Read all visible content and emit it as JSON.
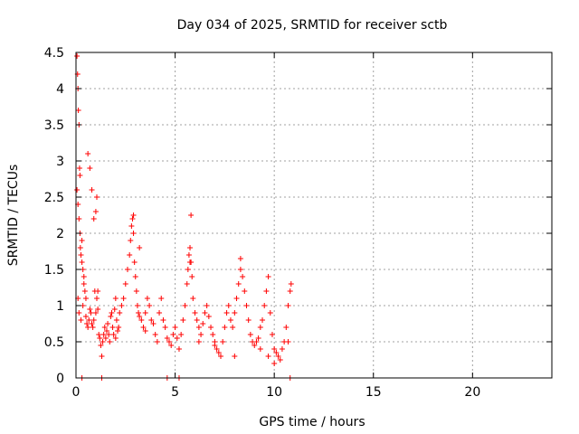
{
  "chart_data": {
    "type": "scatter",
    "title": "Day 034 of 2025, SRMTID for receiver sctb",
    "xlabel": "GPS time / hours",
    "ylabel": "SRMTID / TECUs",
    "xlim": [
      0,
      24
    ],
    "ylim": [
      0,
      4.5
    ],
    "x_ticks": [
      0,
      5,
      10,
      15,
      20
    ],
    "x_tick_labels": [
      "0",
      "5",
      "10",
      "15",
      "20"
    ],
    "y_ticks": [
      0,
      0.5,
      1,
      1.5,
      2,
      2.5,
      3,
      3.5,
      4,
      4.5
    ],
    "y_tick_labels": [
      "0",
      "0.5",
      "1",
      "1.5",
      "2",
      "2.5",
      "3",
      "3.5",
      "4",
      "4.5"
    ],
    "grid": true,
    "marker": "+",
    "marker_color": "#ff0000",
    "series": [
      {
        "name": "SRMTID",
        "x": [
          0.05,
          0.08,
          0.1,
          0.12,
          0.15,
          0.18,
          0.2,
          0.05,
          0.1,
          0.15,
          0.22,
          0.25,
          0.3,
          0.35,
          0.4,
          0.45,
          0.5,
          0.2,
          0.3,
          0.4,
          0.1,
          0.15,
          0.25,
          0.35,
          0.5,
          0.55,
          0.6,
          0.65,
          0.7,
          0.75,
          0.8,
          0.85,
          0.9,
          0.95,
          1.0,
          1.05,
          1.1,
          1.0,
          1.05,
          1.1,
          0.6,
          0.7,
          0.8,
          0.9,
          1.15,
          1.2,
          1.25,
          1.3,
          1.35,
          1.4,
          1.45,
          1.5,
          1.55,
          1.6,
          1.65,
          1.7,
          1.75,
          1.8,
          1.85,
          1.9,
          1.95,
          2.0,
          2.05,
          2.1,
          2.15,
          2.2,
          2.3,
          2.4,
          2.5,
          2.6,
          2.7,
          2.75,
          2.8,
          2.85,
          2.9,
          2.95,
          3.0,
          3.05,
          3.1,
          3.15,
          3.2,
          3.3,
          3.4,
          3.5,
          3.6,
          3.7,
          3.8,
          3.9,
          4.0,
          4.1,
          4.2,
          4.3,
          4.4,
          4.5,
          4.6,
          4.7,
          4.8,
          4.9,
          5.0,
          5.1,
          5.2,
          5.3,
          5.4,
          5.5,
          5.6,
          5.65,
          5.7,
          5.75,
          5.8,
          5.85,
          5.9,
          6.0,
          6.1,
          6.2,
          6.3,
          6.4,
          6.5,
          6.6,
          6.7,
          6.8,
          6.9,
          7.0,
          7.1,
          7.2,
          7.3,
          7.4,
          7.5,
          7.6,
          7.7,
          7.8,
          7.9,
          8.0,
          8.1,
          8.2,
          8.3,
          8.4,
          8.5,
          8.6,
          8.7,
          8.8,
          8.9,
          9.0,
          9.1,
          9.2,
          9.3,
          9.4,
          9.5,
          9.6,
          9.7,
          9.8,
          9.9,
          10.0,
          10.1,
          10.2,
          10.3,
          10.4,
          10.5,
          10.6,
          10.7,
          10.8,
          10.85,
          0.3,
          1.3,
          4.6,
          5.2,
          10.8,
          2.9,
          3.2,
          5.8,
          5.75,
          8.3,
          9.7,
          10.7,
          2.0,
          3.5,
          6.2,
          7.0,
          8.0,
          9.3,
          10.0
        ],
        "y": [
          4.45,
          4.2,
          4.0,
          3.7,
          3.5,
          2.9,
          2.8,
          2.6,
          2.4,
          2.2,
          1.8,
          1.7,
          1.6,
          1.5,
          1.3,
          1.2,
          1.1,
          2.0,
          1.9,
          1.4,
          1.1,
          0.9,
          0.8,
          1.0,
          0.85,
          0.75,
          0.7,
          0.8,
          0.95,
          0.9,
          0.75,
          0.7,
          0.8,
          1.2,
          2.3,
          2.5,
          1.2,
          0.9,
          1.1,
          0.95,
          3.1,
          2.9,
          2.6,
          2.2,
          0.6,
          0.55,
          0.45,
          0.3,
          0.5,
          0.6,
          0.7,
          0.55,
          0.65,
          0.75,
          0.6,
          0.5,
          0.85,
          0.9,
          0.7,
          0.6,
          0.95,
          1.1,
          0.8,
          0.65,
          0.7,
          0.9,
          1.0,
          1.1,
          1.3,
          1.5,
          1.7,
          1.9,
          2.1,
          2.2,
          2.0,
          1.6,
          1.4,
          1.2,
          1.0,
          0.9,
          0.85,
          0.8,
          0.7,
          0.9,
          1.1,
          1.0,
          0.8,
          0.75,
          0.6,
          0.5,
          0.9,
          1.1,
          0.8,
          0.7,
          0.55,
          0.5,
          0.45,
          0.6,
          0.7,
          0.55,
          0.4,
          0.6,
          0.8,
          1.0,
          1.3,
          1.5,
          1.7,
          1.8,
          1.6,
          1.4,
          1.1,
          0.9,
          0.8,
          0.7,
          0.6,
          0.75,
          0.9,
          1.0,
          0.85,
          0.7,
          0.6,
          0.5,
          0.4,
          0.35,
          0.3,
          0.5,
          0.7,
          0.9,
          1.0,
          0.8,
          0.7,
          0.9,
          1.1,
          1.3,
          1.5,
          1.4,
          1.2,
          1.0,
          0.8,
          0.6,
          0.5,
          0.45,
          0.5,
          0.55,
          0.7,
          0.8,
          1.0,
          1.2,
          1.4,
          0.9,
          0.6,
          0.4,
          0.35,
          0.3,
          0.25,
          0.4,
          0.5,
          0.7,
          1.0,
          1.2,
          1.3,
          0.0,
          0.0,
          0.0,
          0.0,
          0.0,
          2.25,
          1.8,
          2.25,
          1.6,
          1.65,
          0.3,
          0.5,
          0.55,
          0.65,
          0.5,
          0.45,
          0.3,
          0.4,
          0.2
        ]
      }
    ]
  }
}
